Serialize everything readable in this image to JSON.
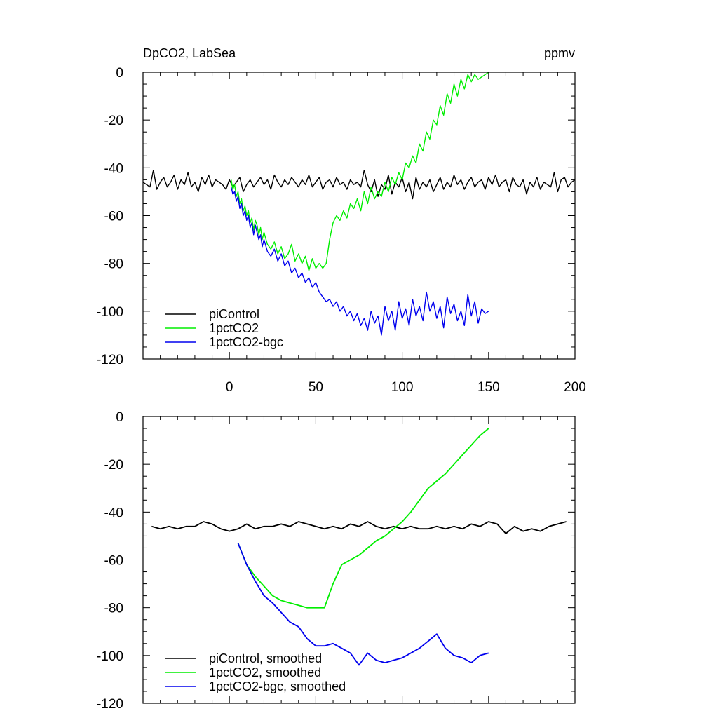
{
  "chart_data": [
    {
      "type": "line",
      "title": "DpCO2, LabSea",
      "units": "ppmv",
      "xlim": [
        -50,
        200
      ],
      "ylim": [
        -120,
        0
      ],
      "xticks": [
        "0",
        "50",
        "100",
        "150",
        "200"
      ],
      "yticks": [
        "0",
        "-20",
        "-40",
        "-60",
        "-80",
        "-100",
        "-120"
      ],
      "legend_position": "bottom-left",
      "series": [
        {
          "name": "piControl",
          "color": "#000000",
          "x": [
            -50,
            -48,
            -46,
            -44,
            -42,
            -40,
            -38,
            -36,
            -34,
            -32,
            -30,
            -28,
            -26,
            -24,
            -22,
            -20,
            -18,
            -16,
            -14,
            -12,
            -10,
            -8,
            -6,
            -4,
            -2,
            0,
            2,
            4,
            6,
            8,
            10,
            12,
            14,
            16,
            18,
            20,
            22,
            24,
            26,
            28,
            30,
            32,
            34,
            36,
            38,
            40,
            42,
            44,
            46,
            48,
            50,
            52,
            54,
            56,
            58,
            60,
            62,
            64,
            66,
            68,
            70,
            72,
            74,
            76,
            78,
            80,
            82,
            84,
            86,
            88,
            90,
            92,
            94,
            96,
            98,
            100,
            102,
            104,
            106,
            108,
            110,
            112,
            114,
            116,
            118,
            120,
            122,
            124,
            126,
            128,
            130,
            132,
            134,
            136,
            138,
            140,
            142,
            144,
            146,
            148,
            150,
            152,
            154,
            156,
            158,
            160,
            162,
            164,
            166,
            168,
            170,
            172,
            174,
            176,
            178,
            180,
            182,
            184,
            186,
            188,
            190,
            192,
            194,
            196,
            198,
            200
          ],
          "y": [
            -46,
            -47,
            -48,
            -41,
            -49,
            -46,
            -44,
            -48,
            -46,
            -43,
            -49,
            -45,
            -47,
            -42,
            -48,
            -46,
            -50,
            -44,
            -47,
            -43,
            -48,
            -45,
            -46,
            -47,
            -49,
            -45,
            -48,
            -46,
            -44,
            -50,
            -47,
            -45,
            -48,
            -46,
            -44,
            -47,
            -45,
            -49,
            -43,
            -46,
            -48,
            -45,
            -47,
            -44,
            -46,
            -48,
            -45,
            -47,
            -43,
            -48,
            -46,
            -44,
            -49,
            -46,
            -45,
            -48,
            -44,
            -47,
            -46,
            -49,
            -45,
            -47,
            -46,
            -48,
            -41,
            -47,
            -50,
            -45,
            -52,
            -47,
            -49,
            -43,
            -51,
            -46,
            -48,
            -44,
            -50,
            -46,
            -53,
            -44,
            -49,
            -46,
            -48,
            -45,
            -50,
            -47,
            -44,
            -49,
            -46,
            -48,
            -43,
            -47,
            -45,
            -49,
            -46,
            -44,
            -48,
            -46,
            -45,
            -49,
            -44,
            -47,
            -43,
            -48,
            -46,
            -45,
            -50,
            -44,
            -47,
            -48,
            -45,
            -51,
            -46,
            -48,
            -44,
            -49,
            -46,
            -47,
            -48,
            -42,
            -50,
            -45,
            -44,
            -48,
            -46,
            -45
          ]
        },
        {
          "name": "1pctCO2",
          "color": "#00ee00",
          "x": [
            1,
            2,
            3,
            4,
            5,
            6,
            7,
            8,
            9,
            10,
            11,
            12,
            13,
            14,
            15,
            16,
            17,
            18,
            19,
            20,
            22,
            24,
            26,
            28,
            30,
            32,
            34,
            36,
            38,
            40,
            42,
            44,
            46,
            48,
            50,
            52,
            54,
            56,
            58,
            60,
            62,
            64,
            66,
            68,
            70,
            72,
            74,
            76,
            78,
            80,
            82,
            84,
            86,
            88,
            90,
            92,
            94,
            96,
            98,
            100,
            102,
            104,
            106,
            108,
            110,
            112,
            114,
            116,
            118,
            120,
            122,
            124,
            126,
            128,
            130,
            132,
            134,
            136,
            138,
            140,
            142,
            144,
            146,
            148,
            150
          ],
          "y": [
            -45,
            -49,
            -47,
            -52,
            -50,
            -55,
            -53,
            -58,
            -56,
            -60,
            -58,
            -63,
            -61,
            -66,
            -62,
            -64,
            -68,
            -65,
            -70,
            -67,
            -72,
            -74,
            -71,
            -76,
            -73,
            -78,
            -76,
            -72,
            -79,
            -76,
            -80,
            -77,
            -83,
            -78,
            -82,
            -80,
            -82,
            -80,
            -70,
            -63,
            -60,
            -62,
            -58,
            -61,
            -55,
            -57,
            -53,
            -58,
            -50,
            -55,
            -48,
            -53,
            -50,
            -52,
            -46,
            -50,
            -44,
            -47,
            -42,
            -45,
            -38,
            -40,
            -35,
            -38,
            -30,
            -33,
            -25,
            -28,
            -20,
            -22,
            -14,
            -18,
            -9,
            -13,
            -5,
            -10,
            -3,
            -7,
            -1,
            -4,
            -1,
            -3,
            -2,
            -1,
            0
          ]
        },
        {
          "name": "1pctCO2-bgc",
          "color": "#0000ee",
          "x": [
            1,
            2,
            3,
            4,
            5,
            6,
            7,
            8,
            9,
            10,
            11,
            12,
            13,
            14,
            15,
            16,
            17,
            18,
            19,
            20,
            22,
            24,
            26,
            28,
            30,
            32,
            34,
            36,
            38,
            40,
            42,
            44,
            46,
            48,
            50,
            52,
            54,
            56,
            58,
            60,
            62,
            64,
            66,
            68,
            70,
            72,
            74,
            76,
            78,
            80,
            82,
            84,
            86,
            88,
            90,
            92,
            94,
            96,
            98,
            100,
            102,
            104,
            106,
            108,
            110,
            112,
            114,
            116,
            118,
            120,
            122,
            124,
            126,
            128,
            130,
            132,
            134,
            136,
            138,
            140,
            142,
            144,
            146,
            148,
            150
          ],
          "y": [
            -48,
            -51,
            -50,
            -54,
            -52,
            -57,
            -55,
            -60,
            -58,
            -62,
            -60,
            -65,
            -63,
            -68,
            -64,
            -67,
            -70,
            -68,
            -73,
            -70,
            -75,
            -77,
            -74,
            -79,
            -76,
            -81,
            -79,
            -84,
            -82,
            -86,
            -84,
            -88,
            -86,
            -90,
            -88,
            -92,
            -94,
            -96,
            -95,
            -98,
            -96,
            -100,
            -98,
            -102,
            -100,
            -104,
            -101,
            -106,
            -103,
            -108,
            -100,
            -105,
            -102,
            -110,
            -98,
            -104,
            -100,
            -108,
            -96,
            -103,
            -99,
            -106,
            -95,
            -102,
            -98,
            -104,
            -92,
            -100,
            -96,
            -103,
            -98,
            -107,
            -94,
            -101,
            -97,
            -104,
            -100,
            -106,
            -93,
            -102,
            -96,
            -105,
            -99,
            -101,
            -100
          ]
        }
      ]
    },
    {
      "type": "line",
      "title": "",
      "xlim": [
        -50,
        200
      ],
      "ylim": [
        -120,
        0
      ],
      "xticks": [],
      "yticks": [
        "0",
        "-20",
        "-40",
        "-60",
        "-80",
        "-100",
        "-120"
      ],
      "legend_position": "bottom-left",
      "series": [
        {
          "name": "piControl, smoothed",
          "color": "#000000",
          "x": [
            -45,
            -40,
            -35,
            -30,
            -25,
            -20,
            -15,
            -10,
            -5,
            0,
            5,
            10,
            15,
            20,
            25,
            30,
            35,
            40,
            45,
            50,
            55,
            60,
            65,
            70,
            75,
            80,
            85,
            90,
            95,
            100,
            105,
            110,
            115,
            120,
            125,
            130,
            135,
            140,
            145,
            150,
            155,
            160,
            165,
            170,
            175,
            180,
            185,
            190,
            195
          ],
          "y": [
            -46,
            -47,
            -46,
            -47,
            -46,
            -46,
            -44,
            -45,
            -47,
            -48,
            -47,
            -45,
            -47,
            -46,
            -46,
            -45,
            -46,
            -44,
            -45,
            -46,
            -47,
            -46,
            -47,
            -45,
            -46,
            -44,
            -46,
            -47,
            -46,
            -47,
            -46,
            -47,
            -47,
            -46,
            -47,
            -46,
            -47,
            -45,
            -46,
            -44,
            -45,
            -49,
            -46,
            -48,
            -47,
            -48,
            -46,
            -45,
            -44
          ]
        },
        {
          "name": "1pctCO2, smoothed",
          "color": "#00ee00",
          "x": [
            5,
            10,
            15,
            20,
            25,
            30,
            35,
            40,
            45,
            50,
            55,
            60,
            65,
            70,
            75,
            80,
            85,
            90,
            95,
            100,
            105,
            110,
            115,
            120,
            125,
            130,
            135,
            140,
            145,
            150
          ],
          "y": [
            -53,
            -62,
            -67,
            -71,
            -75,
            -77,
            -78,
            -79,
            -80,
            -80,
            -80,
            -70,
            -62,
            -60,
            -58,
            -55,
            -52,
            -50,
            -47,
            -44,
            -40,
            -35,
            -30,
            -27,
            -24,
            -20,
            -16,
            -12,
            -8,
            -5
          ]
        },
        {
          "name": "1pctCO2-bgc, smoothed",
          "color": "#0000ee",
          "x": [
            5,
            10,
            15,
            20,
            25,
            30,
            35,
            40,
            45,
            50,
            55,
            60,
            65,
            70,
            75,
            80,
            85,
            90,
            95,
            100,
            105,
            110,
            115,
            120,
            125,
            130,
            135,
            140,
            145,
            150
          ],
          "y": [
            -53,
            -62,
            -69,
            -75,
            -78,
            -82,
            -86,
            -88,
            -93,
            -96,
            -96,
            -95,
            -97,
            -99,
            -104,
            -99,
            -102,
            -103,
            -102,
            -101,
            -99,
            -97,
            -94,
            -91,
            -97,
            -100,
            -101,
            -103,
            -100,
            -99
          ]
        }
      ]
    }
  ]
}
